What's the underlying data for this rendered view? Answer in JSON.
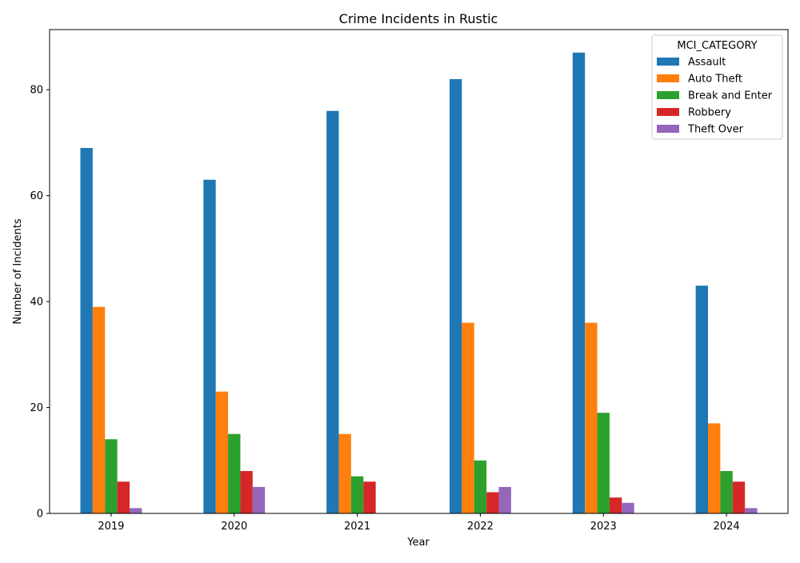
{
  "chart_data": {
    "type": "bar",
    "title": "Crime Incidents in Rustic",
    "xlabel": "Year",
    "ylabel": "Number of Incidents",
    "categories": [
      "2019",
      "2020",
      "2021",
      "2022",
      "2023",
      "2024"
    ],
    "ylim": [
      0,
      91.35
    ],
    "yticks": [
      0,
      20,
      40,
      60,
      80
    ],
    "legend": {
      "title": "MCI_CATEGORY",
      "placement": "top-right"
    },
    "series": [
      {
        "name": "Assault",
        "color": "#1f77b4",
        "values": [
          69,
          63,
          76,
          82,
          87,
          43
        ]
      },
      {
        "name": "Auto Theft",
        "color": "#ff7f0e",
        "values": [
          39,
          23,
          15,
          36,
          36,
          17
        ]
      },
      {
        "name": "Break and Enter",
        "color": "#2ca02c",
        "values": [
          14,
          15,
          7,
          10,
          19,
          8
        ]
      },
      {
        "name": "Robbery",
        "color": "#d62728",
        "values": [
          6,
          8,
          6,
          4,
          3,
          6
        ]
      },
      {
        "name": "Theft Over",
        "color": "#9467bd",
        "values": [
          1,
          5,
          0,
          5,
          2,
          1
        ]
      }
    ],
    "grid": false
  }
}
